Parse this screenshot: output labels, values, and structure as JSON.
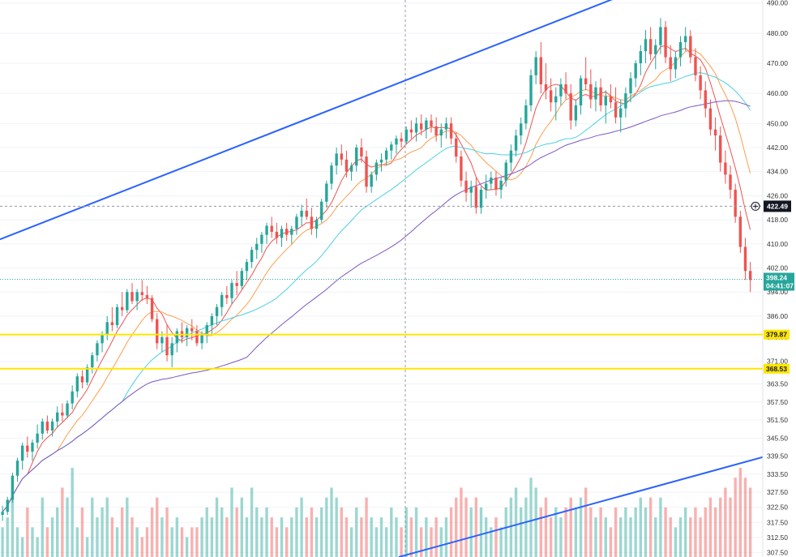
{
  "chart_data": {
    "type": "candlestick",
    "y_ticks": [
      "490.00",
      "480.00",
      "470.00",
      "460.00",
      "450.00",
      "442.00",
      "434.00",
      "426.00",
      "418.00",
      "410.00",
      "402.00",
      "394.00",
      "386.00",
      "379.00",
      "371.00",
      "363.50",
      "357.50",
      "351.50",
      "345.50",
      "339.50",
      "333.50",
      "327.50",
      "322.50",
      "317.50",
      "312.50",
      "307.50"
    ],
    "ylim": [
      306,
      491
    ],
    "crosshair_price": "422.49",
    "last_price": "398.24",
    "countdown": "04:41:07",
    "horizontal_levels": [
      {
        "label": "379.87",
        "value": 379.87,
        "color": "#ffe600"
      },
      {
        "label": "368.53",
        "value": 368.53,
        "color": "#ffe600"
      }
    ],
    "trendlines": [
      {
        "from": [
          0,
          411.5
        ],
        "to": [
          124,
          492
        ],
        "color": "#2962ff"
      },
      {
        "from": [
          80,
          306
        ],
        "to": [
          157,
          341
        ],
        "color": "#2962ff"
      }
    ],
    "series": [
      {
        "type": "moving_average",
        "color": "#ef5350"
      },
      {
        "type": "moving_average",
        "color": "#ff9e4d"
      },
      {
        "type": "moving_average",
        "color": "#4dd0e1"
      },
      {
        "type": "moving_average",
        "color": "#7e57c2"
      }
    ],
    "ohlcv": [
      [
        320,
        323,
        318,
        321,
        3
      ],
      [
        321,
        326,
        320,
        325,
        4
      ],
      [
        325,
        334,
        324,
        333,
        6
      ],
      [
        333,
        339,
        331,
        338,
        3
      ],
      [
        338,
        344,
        335,
        343,
        2
      ],
      [
        343,
        346,
        339,
        341,
        5
      ],
      [
        341,
        345,
        338,
        344,
        3
      ],
      [
        344,
        350,
        342,
        347,
        2
      ],
      [
        347,
        352,
        345,
        351,
        6
      ],
      [
        351,
        353,
        347,
        348,
        3
      ],
      [
        348,
        352,
        346,
        351,
        4
      ],
      [
        351,
        356,
        349,
        354,
        5
      ],
      [
        354,
        357,
        351,
        353,
        7
      ],
      [
        353,
        358,
        352,
        357,
        6
      ],
      [
        357,
        363,
        355,
        361,
        9
      ],
      [
        361,
        367,
        359,
        366,
        3
      ],
      [
        366,
        368,
        362,
        364,
        5
      ],
      [
        364,
        370,
        363,
        369,
        2
      ],
      [
        369,
        374,
        367,
        373,
        6
      ],
      [
        373,
        378,
        371,
        377,
        4
      ],
      [
        377,
        381,
        374,
        380,
        5
      ],
      [
        380,
        386,
        378,
        384,
        6
      ],
      [
        384,
        389,
        381,
        383,
        4
      ],
      [
        383,
        390,
        382,
        389,
        3
      ],
      [
        389,
        394,
        386,
        388,
        5
      ],
      [
        388,
        395,
        387,
        394,
        6
      ],
      [
        394,
        397,
        390,
        391,
        4
      ],
      [
        391,
        395,
        388,
        394,
        3
      ],
      [
        394,
        398,
        391,
        393,
        2
      ],
      [
        393,
        396,
        390,
        392,
        3
      ],
      [
        392,
        393,
        384,
        385,
        5
      ],
      [
        385,
        387,
        375,
        377,
        6
      ],
      [
        377,
        381,
        374,
        379,
        4
      ],
      [
        379,
        383,
        371,
        373,
        5
      ],
      [
        373,
        379,
        369,
        377,
        3
      ],
      [
        377,
        382,
        374,
        381,
        4
      ],
      [
        381,
        384,
        377,
        379,
        3
      ],
      [
        379,
        383,
        376,
        382,
        2
      ],
      [
        382,
        385,
        378,
        381,
        3
      ],
      [
        381,
        383,
        376,
        377,
        3
      ],
      [
        377,
        381,
        375,
        380,
        4
      ],
      [
        380,
        384,
        377,
        383,
        5
      ],
      [
        383,
        387,
        380,
        386,
        4
      ],
      [
        386,
        390,
        383,
        389,
        6
      ],
      [
        389,
        394,
        386,
        393,
        5
      ],
      [
        393,
        396,
        390,
        392,
        4
      ],
      [
        392,
        398,
        390,
        397,
        7
      ],
      [
        397,
        401,
        393,
        396,
        5
      ],
      [
        396,
        402,
        395,
        401,
        6
      ],
      [
        401,
        405,
        398,
        404,
        4
      ],
      [
        404,
        409,
        402,
        408,
        7
      ],
      [
        408,
        412,
        405,
        410,
        5
      ],
      [
        410,
        414,
        407,
        413,
        4
      ],
      [
        413,
        417,
        410,
        416,
        5
      ],
      [
        416,
        419,
        412,
        414,
        4
      ],
      [
        414,
        417,
        410,
        412,
        3
      ],
      [
        412,
        416,
        409,
        415,
        4
      ],
      [
        415,
        417,
        411,
        413,
        3
      ],
      [
        413,
        416,
        410,
        415,
        4
      ],
      [
        415,
        420,
        413,
        419,
        5
      ],
      [
        419,
        423,
        416,
        421,
        6
      ],
      [
        421,
        425,
        418,
        419,
        4
      ],
      [
        419,
        422,
        413,
        415,
        5
      ],
      [
        415,
        419,
        412,
        418,
        4
      ],
      [
        418,
        425,
        417,
        424,
        5
      ],
      [
        424,
        431,
        422,
        430,
        6
      ],
      [
        430,
        437,
        428,
        436,
        7
      ],
      [
        436,
        442,
        433,
        440,
        6
      ],
      [
        440,
        443,
        436,
        438,
        5
      ],
      [
        438,
        441,
        432,
        434,
        4
      ],
      [
        434,
        437,
        431,
        436,
        3
      ],
      [
        436,
        443,
        434,
        442,
        5
      ],
      [
        442,
        445,
        437,
        439,
        4
      ],
      [
        439,
        441,
        427,
        429,
        6
      ],
      [
        429,
        434,
        427,
        433,
        4
      ],
      [
        433,
        438,
        431,
        437,
        3
      ],
      [
        437,
        440,
        434,
        438,
        4
      ],
      [
        438,
        442,
        436,
        441,
        3
      ],
      [
        441,
        444,
        438,
        443,
        5
      ],
      [
        443,
        446,
        440,
        445,
        4
      ],
      [
        445,
        447,
        442,
        444,
        3
      ],
      [
        444,
        449,
        443,
        448,
        5
      ],
      [
        448,
        451,
        445,
        447,
        4
      ],
      [
        447,
        452,
        444,
        450,
        5
      ],
      [
        450,
        453,
        446,
        448,
        3
      ],
      [
        448,
        452,
        445,
        451,
        4
      ],
      [
        451,
        453,
        447,
        449,
        3
      ],
      [
        449,
        452,
        444,
        446,
        4
      ],
      [
        446,
        450,
        442,
        448,
        3
      ],
      [
        448,
        452,
        445,
        450,
        4
      ],
      [
        450,
        452,
        443,
        445,
        5
      ],
      [
        445,
        447,
        437,
        439,
        6
      ],
      [
        439,
        441,
        429,
        431,
        7
      ],
      [
        431,
        434,
        424,
        427,
        6
      ],
      [
        427,
        431,
        422,
        429,
        5
      ],
      [
        429,
        432,
        420,
        422,
        6
      ],
      [
        422,
        429,
        420,
        428,
        5
      ],
      [
        428,
        433,
        425,
        430,
        4
      ],
      [
        430,
        434,
        428,
        432,
        3
      ],
      [
        432,
        434,
        426,
        428,
        4
      ],
      [
        428,
        432,
        425,
        431,
        3
      ],
      [
        431,
        438,
        429,
        437,
        5
      ],
      [
        437,
        443,
        434,
        441,
        6
      ],
      [
        441,
        448,
        439,
        446,
        7
      ],
      [
        446,
        452,
        443,
        450,
        5
      ],
      [
        450,
        458,
        448,
        456,
        6
      ],
      [
        456,
        468,
        454,
        466,
        8
      ],
      [
        466,
        474,
        463,
        472,
        7
      ],
      [
        472,
        477,
        460,
        463,
        5
      ],
      [
        463,
        470,
        458,
        461,
        6
      ],
      [
        461,
        465,
        454,
        457,
        4
      ],
      [
        457,
        462,
        451,
        459,
        5
      ],
      [
        459,
        465,
        456,
        463,
        4
      ],
      [
        463,
        467,
        458,
        460,
        5
      ],
      [
        460,
        463,
        448,
        451,
        6
      ],
      [
        451,
        458,
        449,
        456,
        5
      ],
      [
        456,
        466,
        453,
        465,
        6
      ],
      [
        465,
        472,
        461,
        463,
        7
      ],
      [
        463,
        468,
        455,
        458,
        5
      ],
      [
        458,
        464,
        454,
        462,
        4
      ],
      [
        462,
        465,
        454,
        456,
        5
      ],
      [
        456,
        461,
        450,
        459,
        4
      ],
      [
        459,
        463,
        455,
        457,
        3
      ],
      [
        457,
        462,
        450,
        452,
        5
      ],
      [
        452,
        458,
        447,
        455,
        4
      ],
      [
        455,
        462,
        452,
        460,
        5
      ],
      [
        460,
        467,
        457,
        465,
        4
      ],
      [
        465,
        471,
        462,
        470,
        5
      ],
      [
        470,
        476,
        466,
        474,
        6
      ],
      [
        474,
        481,
        470,
        478,
        5
      ],
      [
        478,
        482,
        471,
        473,
        6
      ],
      [
        473,
        478,
        468,
        476,
        4
      ],
      [
        476,
        485,
        473,
        482,
        6
      ],
      [
        482,
        484,
        470,
        472,
        5
      ],
      [
        472,
        476,
        464,
        468,
        4
      ],
      [
        468,
        474,
        465,
        472,
        3
      ],
      [
        472,
        479,
        469,
        477,
        4
      ],
      [
        477,
        482,
        474,
        479,
        5
      ],
      [
        479,
        481,
        470,
        472,
        4
      ],
      [
        472,
        475,
        464,
        466,
        5
      ],
      [
        466,
        469,
        458,
        461,
        4
      ],
      [
        461,
        464,
        452,
        455,
        5
      ],
      [
        455,
        458,
        446,
        448,
        6
      ],
      [
        448,
        452,
        441,
        446,
        5
      ],
      [
        446,
        449,
        434,
        437,
        6
      ],
      [
        437,
        441,
        430,
        433,
        7
      ],
      [
        433,
        436,
        425,
        428,
        6
      ],
      [
        428,
        430,
        417,
        419,
        8
      ],
      [
        419,
        421,
        407,
        409,
        9
      ],
      [
        409,
        412,
        398,
        401,
        8
      ],
      [
        401,
        404,
        394,
        398,
        7
      ]
    ]
  },
  "colors": {
    "up": "#26a69a",
    "down": "#ef5350",
    "grid": "#f0f3fa",
    "axis_bg": "#ffffff",
    "last_price_badge": "#26a69a",
    "crosshair_badge": "#131722"
  },
  "icons": {
    "crosshair_marker": "plus-circle-icon"
  }
}
